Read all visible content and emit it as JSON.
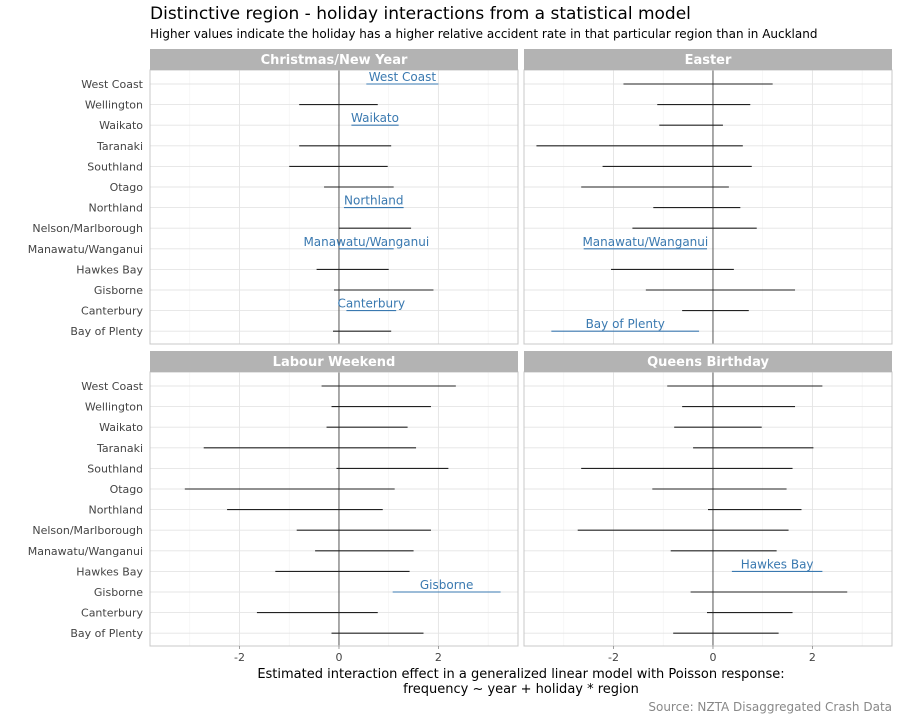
{
  "chart_data": {
    "type": "interval",
    "title": "Distinctive region - holiday interactions from a statistical model",
    "subtitle": "Higher values indicate the holiday has a higher relative accident rate in that particular region than in Auckland",
    "xlabel_line1": "Estimated interaction effect in a generalized linear model with Poisson response:",
    "xlabel_line2": "frequency ~ year + holiday * region",
    "caption": "Source: NZTA Disaggregated Crash Data",
    "xlim": [
      -3.8,
      3.6
    ],
    "xticks": [
      -2,
      0,
      2
    ],
    "xtick_labels": [
      "-2",
      "0",
      "2"
    ],
    "regions": [
      "West Coast",
      "Wellington",
      "Waikato",
      "Taranaki",
      "Southland",
      "Otago",
      "Northland",
      "Nelson/Marlborough",
      "Manawatu/Wanganui",
      "Hawkes Bay",
      "Gisborne",
      "Canterbury",
      "Bay of Plenty"
    ],
    "highlight_color": "#3a79b0",
    "line_color": "#222222",
    "strip_color": "#b3b3b3",
    "panels": [
      {
        "name": "Christmas/New Year",
        "intervals": [
          {
            "region": "West Coast",
            "low": 0.55,
            "high": 2.0,
            "highlight": true
          },
          {
            "region": "Wellington",
            "low": -0.8,
            "high": 0.78,
            "highlight": false
          },
          {
            "region": "Waikato",
            "low": 0.25,
            "high": 1.2,
            "highlight": true
          },
          {
            "region": "Taranaki",
            "low": -0.8,
            "high": 1.05,
            "highlight": false
          },
          {
            "region": "Southland",
            "low": -1.0,
            "high": 0.98,
            "highlight": false
          },
          {
            "region": "Otago",
            "low": -0.3,
            "high": 1.1,
            "highlight": false
          },
          {
            "region": "Northland",
            "low": 0.1,
            "high": 1.3,
            "highlight": true
          },
          {
            "region": "Nelson/Marlborough",
            "low": 0.0,
            "high": 1.45,
            "highlight": false
          },
          {
            "region": "Manawatu/Wanganui",
            "low": 0.0,
            "high": 1.1,
            "highlight": true
          },
          {
            "region": "Hawkes Bay",
            "low": -0.45,
            "high": 1.0,
            "highlight": false
          },
          {
            "region": "Gisborne",
            "low": -0.1,
            "high": 1.9,
            "highlight": false
          },
          {
            "region": "Canterbury",
            "low": 0.15,
            "high": 1.15,
            "highlight": true
          },
          {
            "region": "Bay of Plenty",
            "low": -0.12,
            "high": 1.05,
            "highlight": false
          }
        ]
      },
      {
        "name": "Easter",
        "intervals": [
          {
            "region": "West Coast",
            "low": -1.8,
            "high": 1.2,
            "highlight": false
          },
          {
            "region": "Wellington",
            "low": -1.12,
            "high": 0.75,
            "highlight": false
          },
          {
            "region": "Waikato",
            "low": -1.08,
            "high": 0.2,
            "highlight": false
          },
          {
            "region": "Taranaki",
            "low": -3.55,
            "high": 0.6,
            "highlight": false
          },
          {
            "region": "Southland",
            "low": -2.22,
            "high": 0.78,
            "highlight": false
          },
          {
            "region": "Otago",
            "low": -2.65,
            "high": 0.32,
            "highlight": false
          },
          {
            "region": "Northland",
            "low": -1.2,
            "high": 0.55,
            "highlight": false
          },
          {
            "region": "Nelson/Marlborough",
            "low": -1.62,
            "high": 0.88,
            "highlight": false
          },
          {
            "region": "Manawatu/Wanganui",
            "low": -2.6,
            "high": -0.12,
            "highlight": true
          },
          {
            "region": "Hawkes Bay",
            "low": -2.05,
            "high": 0.42,
            "highlight": false
          },
          {
            "region": "Gisborne",
            "low": -1.35,
            "high": 1.65,
            "highlight": false
          },
          {
            "region": "Canterbury",
            "low": -0.62,
            "high": 0.72,
            "highlight": false
          },
          {
            "region": "Bay of Plenty",
            "low": -3.25,
            "high": -0.28,
            "highlight": true
          }
        ]
      },
      {
        "name": "Labour Weekend",
        "intervals": [
          {
            "region": "West Coast",
            "low": -0.35,
            "high": 2.35,
            "highlight": false
          },
          {
            "region": "Wellington",
            "low": -0.15,
            "high": 1.85,
            "highlight": false
          },
          {
            "region": "Waikato",
            "low": -0.25,
            "high": 1.38,
            "highlight": false
          },
          {
            "region": "Taranaki",
            "low": -2.72,
            "high": 1.55,
            "highlight": false
          },
          {
            "region": "Southland",
            "low": -0.05,
            "high": 2.2,
            "highlight": false
          },
          {
            "region": "Otago",
            "low": -3.1,
            "high": 1.12,
            "highlight": false
          },
          {
            "region": "Northland",
            "low": -2.25,
            "high": 0.88,
            "highlight": false
          },
          {
            "region": "Nelson/Marlborough",
            "low": -0.85,
            "high": 1.85,
            "highlight": false
          },
          {
            "region": "Manawatu/Wanganui",
            "low": -0.48,
            "high": 1.5,
            "highlight": false
          },
          {
            "region": "Hawkes Bay",
            "low": -1.28,
            "high": 1.42,
            "highlight": false
          },
          {
            "region": "Gisborne",
            "low": 1.08,
            "high": 3.25,
            "highlight": true
          },
          {
            "region": "Canterbury",
            "low": -1.65,
            "high": 0.78,
            "highlight": false
          },
          {
            "region": "Bay of Plenty",
            "low": -0.15,
            "high": 1.7,
            "highlight": false
          }
        ]
      },
      {
        "name": "Queens Birthday",
        "intervals": [
          {
            "region": "West Coast",
            "low": -0.92,
            "high": 2.2,
            "highlight": false
          },
          {
            "region": "Wellington",
            "low": -0.62,
            "high": 1.65,
            "highlight": false
          },
          {
            "region": "Waikato",
            "low": -0.78,
            "high": 0.98,
            "highlight": false
          },
          {
            "region": "Taranaki",
            "low": -0.4,
            "high": 2.02,
            "highlight": false
          },
          {
            "region": "Southland",
            "low": -2.65,
            "high": 1.6,
            "highlight": false
          },
          {
            "region": "Otago",
            "low": -1.22,
            "high": 1.48,
            "highlight": false
          },
          {
            "region": "Northland",
            "low": -0.1,
            "high": 1.78,
            "highlight": false
          },
          {
            "region": "Nelson/Marlborough",
            "low": -2.72,
            "high": 1.52,
            "highlight": false
          },
          {
            "region": "Manawatu/Wanganui",
            "low": -0.85,
            "high": 1.28,
            "highlight": false
          },
          {
            "region": "Hawkes Bay",
            "low": 0.38,
            "high": 2.2,
            "highlight": true
          },
          {
            "region": "Gisborne",
            "low": -0.45,
            "high": 2.7,
            "highlight": false
          },
          {
            "region": "Canterbury",
            "low": -0.12,
            "high": 1.6,
            "highlight": false
          },
          {
            "region": "Bay of Plenty",
            "low": -0.8,
            "high": 1.32,
            "highlight": false
          }
        ]
      }
    ]
  }
}
